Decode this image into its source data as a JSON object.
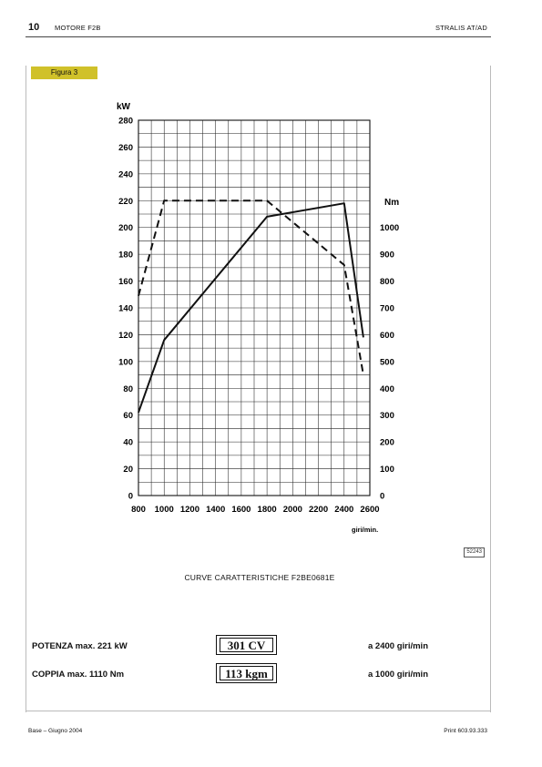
{
  "header": {
    "page_number": "10",
    "section_title": "MOTORE F2B",
    "manual_title": "STRALIS AT/AD"
  },
  "figure": {
    "label": "Figura 3",
    "code": "52243",
    "caption": "CURVE CARATTERISTICHE F2BE0681E"
  },
  "chart_data": {
    "type": "line",
    "title": "",
    "xlabel": "giri/min.",
    "ylabel": "kW",
    "ylabel_right": "Nm",
    "xlim": [
      800,
      2600
    ],
    "ylim": [
      0,
      280
    ],
    "ylim_right": [
      0,
      1400
    ],
    "x_ticks": [
      "800",
      "1000",
      "1200",
      "1400",
      "1600",
      "1800",
      "2000",
      "2200",
      "2400",
      "2600"
    ],
    "y_ticks": [
      "0",
      "20",
      "40",
      "60",
      "80",
      "100",
      "120",
      "140",
      "160",
      "180",
      "200",
      "220",
      "240",
      "260",
      "280"
    ],
    "y_ticks_right": [
      "0",
      "100",
      "200",
      "300",
      "400",
      "500",
      "600",
      "700",
      "800",
      "900",
      "1000"
    ],
    "grid": true,
    "series": [
      {
        "style": "solid",
        "axis": "left",
        "x": [
          800,
          1000,
          1800,
          2400,
          2550
        ],
        "y": [
          62,
          116,
          208,
          218,
          118
        ]
      },
      {
        "style": "dashed",
        "axis": "right",
        "x": [
          800,
          1000,
          1800,
          2400,
          2550
        ],
        "y": [
          745,
          1100,
          1100,
          860,
          450
        ]
      }
    ]
  },
  "specs": {
    "power_label": "POTENZA max. 221 kW",
    "power_cv": "301 CV",
    "power_rpm": "a 2400 giri/min",
    "torque_label": "COPPIA max. 1110 Nm",
    "torque_kgm": "113 kgm",
    "torque_rpm": "a 1000 giri/min"
  },
  "footer": {
    "left": "Base – Giugno 2004",
    "right": "Print 603.93.333"
  }
}
